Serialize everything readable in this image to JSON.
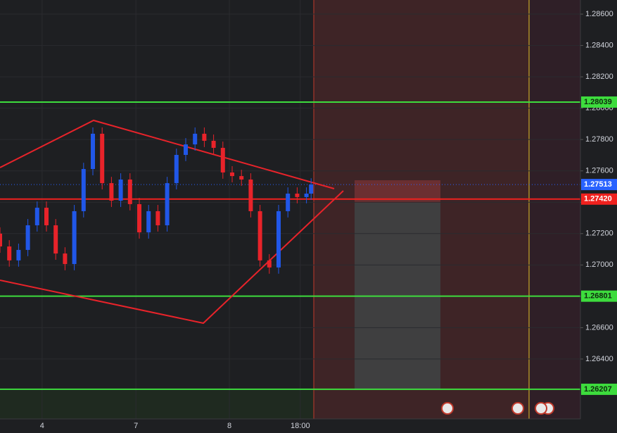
{
  "chart_data": {
    "type": "candlestick",
    "x": [
      0,
      3,
      6,
      9,
      12,
      15,
      18,
      21,
      24,
      27,
      30,
      33,
      36,
      39,
      42,
      45,
      48,
      51,
      54,
      57,
      60,
      63,
      66,
      69,
      72,
      75,
      78,
      81,
      84,
      87,
      90,
      93,
      96,
      99,
      100.5
    ],
    "open": [
      1.272,
      1.27118,
      1.27029,
      1.27096,
      1.27253,
      1.27365,
      1.27253,
      1.27073,
      1.27006,
      1.27343,
      1.27612,
      1.27837,
      1.27522,
      1.2741,
      1.27545,
      1.27388,
      1.27208,
      1.27343,
      1.27253,
      1.27522,
      1.27702,
      1.27769,
      1.27837,
      1.27792,
      1.27747,
      1.2759,
      1.27567,
      1.27545,
      1.27343,
      1.27029,
      1.26984,
      1.27343,
      1.27455,
      1.27433,
      1.27455
    ],
    "high": [
      1.2724,
      1.27158,
      1.27136,
      1.27293,
      1.27405,
      1.27405,
      1.27293,
      1.27113,
      1.27383,
      1.27652,
      1.27877,
      1.27877,
      1.27562,
      1.27585,
      1.27585,
      1.27428,
      1.27383,
      1.27383,
      1.27562,
      1.27742,
      1.27809,
      1.27877,
      1.27877,
      1.27832,
      1.27787,
      1.2763,
      1.27607,
      1.27585,
      1.27383,
      1.27069,
      1.27383,
      1.27495,
      1.27495,
      1.27495,
      1.27553
    ],
    "low": [
      1.27078,
      1.26989,
      1.26989,
      1.27056,
      1.27213,
      1.27213,
      1.27033,
      1.26966,
      1.26966,
      1.27303,
      1.27572,
      1.27482,
      1.2737,
      1.2737,
      1.27348,
      1.27168,
      1.27168,
      1.27213,
      1.27213,
      1.27482,
      1.27662,
      1.27729,
      1.27752,
      1.27707,
      1.2755,
      1.27527,
      1.27505,
      1.27303,
      1.26989,
      1.26944,
      1.26944,
      1.27303,
      1.27393,
      1.27393,
      1.27415
    ],
    "close": [
      1.27118,
      1.27029,
      1.27096,
      1.27253,
      1.27365,
      1.27253,
      1.27073,
      1.27006,
      1.27343,
      1.27612,
      1.27837,
      1.27522,
      1.2741,
      1.27545,
      1.27388,
      1.27208,
      1.27343,
      1.27253,
      1.27522,
      1.27702,
      1.27769,
      1.27837,
      1.27792,
      1.27747,
      1.2759,
      1.27567,
      1.27545,
      1.27343,
      1.27029,
      1.26984,
      1.27343,
      1.27455,
      1.27433,
      1.27455,
      1.27513
    ],
    "up_color": "#2157e8",
    "down_color": "#e8232a",
    "xlim": [
      0,
      187.5
    ],
    "xticks": [
      {
        "value": 13.6,
        "label": "4"
      },
      {
        "value": 43.9,
        "label": "7"
      },
      {
        "value": 74.1,
        "label": "8"
      },
      {
        "value": 97,
        "label": "18:00"
      }
    ],
    "ylim": [
      1.26018,
      1.2869
    ],
    "yticks": [
      {
        "value": 1.264,
        "label": "1.26400"
      },
      {
        "value": 1.266,
        "label": "1.26600"
      },
      {
        "value": 1.268,
        "label": "1.26800"
      },
      {
        "value": 1.27,
        "label": "1.27000"
      },
      {
        "value": 1.272,
        "label": "1.27200"
      },
      {
        "value": 1.274,
        "label": "1.27400"
      },
      {
        "value": 1.276,
        "label": "1.27600"
      },
      {
        "value": 1.278,
        "label": "1.27800"
      },
      {
        "value": 1.28,
        "label": "1.28000"
      },
      {
        "value": 1.282,
        "label": "1.28200"
      },
      {
        "value": 1.284,
        "label": "1.28400"
      },
      {
        "value": 1.286,
        "label": "1.28600"
      }
    ],
    "grid": true,
    "levels": [
      {
        "value": 1.28039,
        "label": "1.28039",
        "color": "#3ddc3d"
      },
      {
        "value": 1.26801,
        "label": "1.26801",
        "color": "#3ddc3d"
      },
      {
        "value": 1.26207,
        "label": "1.26207",
        "color": "#3ddc3d"
      },
      {
        "value": 1.2742,
        "label": "1.27420",
        "color": "#f0211e"
      },
      {
        "value": 1.27513,
        "label": "1.27513",
        "color": "#2962ff"
      }
    ]
  }
}
